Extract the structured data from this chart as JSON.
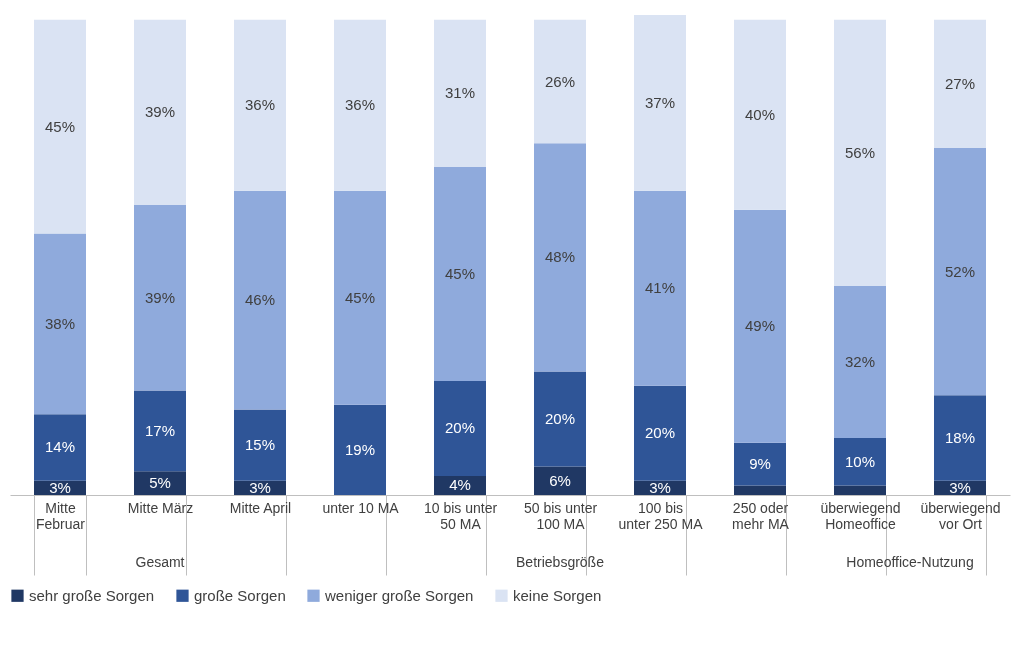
{
  "chart_data": {
    "type": "bar",
    "stacked": true,
    "legend": "bottom",
    "categories": [
      "Mitte Februar",
      "Mitte März",
      "Mitte April",
      "unter 10 MA",
      "10 bis unter 50 MA",
      "50 bis unter 100 MA",
      "100 bis unter 250 MA",
      "250 oder mehr MA",
      "überwiegend Homeoffice",
      "überwiegend vor Ort"
    ],
    "series": [
      {
        "name": "sehr große Sorgen",
        "color": "#203864",
        "values": [
          3,
          5,
          3,
          0,
          4,
          6,
          3,
          2,
          2,
          3
        ],
        "value_labels": [
          "3%",
          "5%",
          "3%",
          null,
          "4%",
          "6%",
          "3%",
          null,
          null,
          "3%"
        ]
      },
      {
        "name": "große Sorgen",
        "color": "#2f5597",
        "values": [
          14,
          17,
          15,
          19,
          20,
          20,
          20,
          9,
          10,
          18
        ],
        "value_labels": [
          "14%",
          "17%",
          "15%",
          "19%",
          "20%",
          "20%",
          "20%",
          "9%",
          "10%",
          "18%"
        ]
      },
      {
        "name": "weniger große Sorgen",
        "color": "#8faadc",
        "values": [
          38,
          39,
          46,
          45,
          45,
          48,
          41,
          49,
          32,
          52
        ],
        "value_labels": [
          "38%",
          "39%",
          "46%",
          "45%",
          "45%",
          "48%",
          "41%",
          "49%",
          "32%",
          "52%"
        ]
      },
      {
        "name": "keine Sorgen",
        "color": "#dae3f3",
        "values": [
          45,
          39,
          36,
          36,
          31,
          26,
          37,
          40,
          56,
          27
        ],
        "value_labels": [
          "45%",
          "39%",
          "36%",
          "36%",
          "31%",
          "26%",
          "37%",
          "40%",
          "56%",
          "27%"
        ]
      }
    ],
    "annotations": [
      "Gesamt",
      "Betriebsgröße",
      "Homeoffice-Nutzung"
    ]
  }
}
